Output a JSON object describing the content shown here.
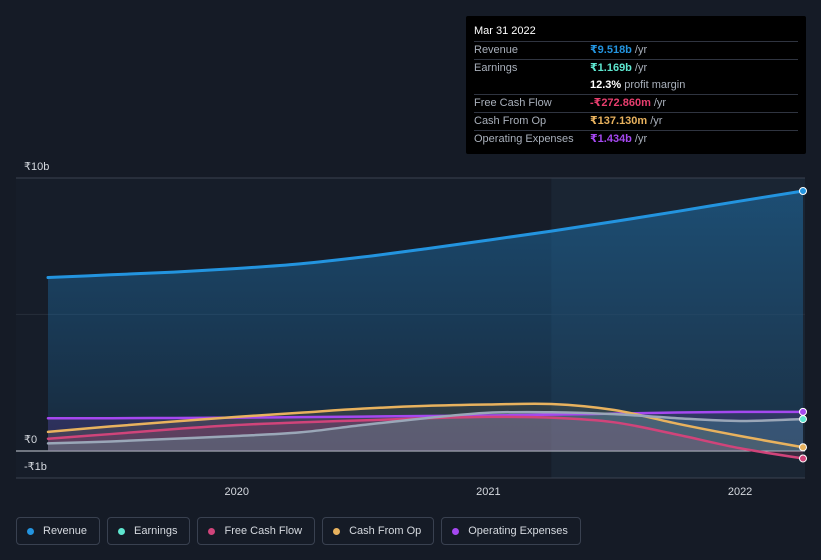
{
  "tooltip": {
    "date": "Mar 31 2022",
    "rows": [
      {
        "label": "Revenue",
        "value": "₹9.518b",
        "unit": "/yr",
        "color": "#2394df"
      },
      {
        "label": "Earnings",
        "value": "₹1.169b",
        "unit": "/yr",
        "color": "#5ee6cf"
      },
      {
        "label": "",
        "value": "12.3%",
        "unit": "profit margin",
        "color": "#ffffff"
      },
      {
        "label": "Free Cash Flow",
        "value": "-₹272.860m",
        "unit": "/yr",
        "color": "#e83e6e"
      },
      {
        "label": "Cash From Op",
        "value": "₹137.130m",
        "unit": "/yr",
        "color": "#e8b25e"
      },
      {
        "label": "Operating Expenses",
        "value": "₹1.434b",
        "unit": "/yr",
        "color": "#a548f0"
      }
    ]
  },
  "legend": [
    {
      "label": "Revenue",
      "color": "#2394df"
    },
    {
      "label": "Earnings",
      "color": "#5ee6cf"
    },
    {
      "label": "Free Cash Flow",
      "color": "#d0447a"
    },
    {
      "label": "Cash From Op",
      "color": "#e8b25e"
    },
    {
      "label": "Operating Expenses",
      "color": "#a548f0"
    }
  ],
  "chart_data": {
    "type": "line",
    "title": "",
    "xlabel": "",
    "ylabel": "",
    "ylim": [
      -1,
      10
    ],
    "xlim": [
      2019.25,
      2022.25
    ],
    "y_tick_labels": [
      {
        "value": 10,
        "label": "₹10b"
      },
      {
        "value": 0,
        "label": "₹0"
      },
      {
        "value": -1,
        "label": "-₹1b"
      }
    ],
    "x_tick_labels": [
      {
        "value": 2020,
        "label": "2020"
      },
      {
        "value": 2021,
        "label": "2021"
      },
      {
        "value": 2022,
        "label": "2022"
      }
    ],
    "highlight_from": 2021.25,
    "series": [
      {
        "name": "Revenue",
        "color": "#2394df",
        "x": [
          2019.25,
          2019.5,
          2019.75,
          2020.0,
          2020.25,
          2020.5,
          2020.75,
          2021.0,
          2021.25,
          2021.5,
          2021.75,
          2022.0,
          2022.25
        ],
        "values": [
          6.35,
          6.45,
          6.55,
          6.68,
          6.85,
          7.1,
          7.4,
          7.72,
          8.05,
          8.4,
          8.77,
          9.15,
          9.518
        ]
      },
      {
        "name": "Earnings",
        "color": "#5ee6cf",
        "x": [
          2019.25,
          2019.5,
          2019.75,
          2020.0,
          2020.25,
          2020.5,
          2020.75,
          2021.0,
          2021.25,
          2021.5,
          2021.75,
          2022.0,
          2022.25
        ],
        "values": [
          0.28,
          0.35,
          0.45,
          0.55,
          0.68,
          0.95,
          1.2,
          1.4,
          1.42,
          1.35,
          1.2,
          1.1,
          1.169
        ]
      },
      {
        "name": "Free Cash Flow",
        "color": "#d0447a",
        "x": [
          2019.25,
          2019.5,
          2019.75,
          2020.0,
          2020.25,
          2020.5,
          2020.75,
          2021.0,
          2021.25,
          2021.5,
          2021.75,
          2022.0,
          2022.25
        ],
        "values": [
          0.45,
          0.62,
          0.8,
          0.95,
          1.05,
          1.12,
          1.2,
          1.25,
          1.22,
          1.05,
          0.6,
          0.1,
          -0.27286
        ]
      },
      {
        "name": "Cash From Op",
        "color": "#e8b25e",
        "x": [
          2019.25,
          2019.5,
          2019.75,
          2020.0,
          2020.25,
          2020.5,
          2020.75,
          2021.0,
          2021.25,
          2021.5,
          2021.75,
          2022.0,
          2022.25
        ],
        "values": [
          0.7,
          0.9,
          1.08,
          1.25,
          1.4,
          1.55,
          1.65,
          1.7,
          1.72,
          1.5,
          1.0,
          0.55,
          0.13713
        ]
      },
      {
        "name": "Operating Expenses",
        "color": "#a548f0",
        "x": [
          2019.25,
          2019.5,
          2019.75,
          2020.0,
          2020.25,
          2020.5,
          2020.75,
          2021.0,
          2021.25,
          2021.5,
          2021.75,
          2022.0,
          2022.25
        ],
        "values": [
          1.2,
          1.2,
          1.21,
          1.22,
          1.24,
          1.26,
          1.28,
          1.3,
          1.33,
          1.37,
          1.41,
          1.43,
          1.434
        ]
      }
    ]
  }
}
